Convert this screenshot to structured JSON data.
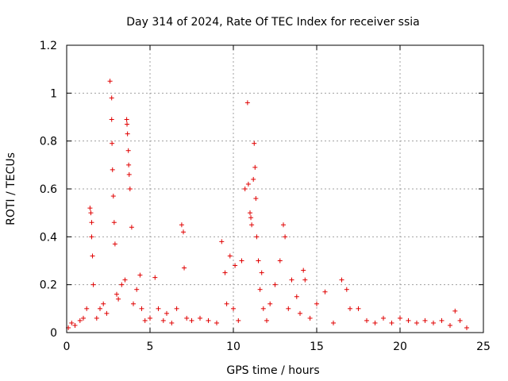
{
  "chart_data": {
    "type": "scatter",
    "title": "Day 314 of 2024, Rate Of TEC Index for receiver ssia",
    "xlabel": "GPS time / hours",
    "ylabel": "ROTI / TECUs",
    "xlim": [
      0,
      25
    ],
    "ylim": [
      0,
      1.2
    ],
    "x_ticks": [
      0,
      5,
      10,
      15,
      20,
      25
    ],
    "x_tick_labels": [
      "0",
      "5",
      "10",
      "15",
      "20",
      "25"
    ],
    "y_ticks": [
      0,
      0.2,
      0.4,
      0.6,
      0.8,
      1.0,
      1.2
    ],
    "y_tick_labels": [
      "0",
      "0.2",
      "0.4",
      "0.6",
      "0.8",
      "1",
      "1.2"
    ],
    "grid": true,
    "marker": "plus",
    "colors": {
      "points": "#e00000"
    },
    "series": [
      {
        "x": [
          0.1,
          0.3,
          0.5,
          0.8,
          1.0,
          1.2,
          1.4,
          1.45,
          1.5,
          1.5,
          1.55,
          1.6,
          1.8,
          2.0,
          2.2,
          2.4,
          2.6,
          2.7,
          2.7,
          2.72,
          2.75,
          2.8,
          2.85,
          2.9,
          3.0,
          3.1,
          3.3,
          3.5,
          3.6,
          3.62,
          3.65,
          3.7,
          3.72,
          3.75,
          3.8,
          3.9,
          4.0,
          4.2,
          4.4,
          4.5,
          4.7,
          5.0,
          5.3,
          5.5,
          5.8,
          6.0,
          6.3,
          6.6,
          6.9,
          7.0,
          7.05,
          7.2,
          7.5,
          8.0,
          8.5,
          9.0,
          9.3,
          9.5,
          9.6,
          9.8,
          10.0,
          10.1,
          10.3,
          10.5,
          10.7,
          10.85,
          10.9,
          11.0,
          11.05,
          11.1,
          11.2,
          11.25,
          11.3,
          11.35,
          11.4,
          11.5,
          11.6,
          11.7,
          11.8,
          12.0,
          12.2,
          12.5,
          12.8,
          13.0,
          13.1,
          13.3,
          13.5,
          13.8,
          14.0,
          14.2,
          14.3,
          14.6,
          15.0,
          15.5,
          16.0,
          16.5,
          16.8,
          17.0,
          17.5,
          18.0,
          18.5,
          19.0,
          19.5,
          20.0,
          20.5,
          21.0,
          21.5,
          22.0,
          22.5,
          23.0,
          23.3,
          23.6,
          24.0
        ],
        "y": [
          0.02,
          0.04,
          0.03,
          0.05,
          0.06,
          0.1,
          0.52,
          0.5,
          0.46,
          0.4,
          0.32,
          0.2,
          0.06,
          0.1,
          0.12,
          0.08,
          1.05,
          0.98,
          0.89,
          0.79,
          0.68,
          0.57,
          0.46,
          0.37,
          0.16,
          0.14,
          0.2,
          0.22,
          0.89,
          0.87,
          0.83,
          0.76,
          0.7,
          0.66,
          0.6,
          0.44,
          0.12,
          0.18,
          0.24,
          0.1,
          0.05,
          0.06,
          0.23,
          0.1,
          0.05,
          0.08,
          0.04,
          0.1,
          0.45,
          0.42,
          0.27,
          0.06,
          0.05,
          0.06,
          0.05,
          0.04,
          0.38,
          0.25,
          0.12,
          0.32,
          0.1,
          0.28,
          0.05,
          0.3,
          0.6,
          0.96,
          0.62,
          0.5,
          0.48,
          0.45,
          0.64,
          0.79,
          0.69,
          0.56,
          0.4,
          0.3,
          0.18,
          0.25,
          0.1,
          0.05,
          0.12,
          0.2,
          0.3,
          0.45,
          0.4,
          0.1,
          0.22,
          0.15,
          0.08,
          0.26,
          0.22,
          0.06,
          0.12,
          0.17,
          0.04,
          0.22,
          0.18,
          0.1,
          0.1,
          0.05,
          0.04,
          0.06,
          0.04,
          0.06,
          0.05,
          0.04,
          0.05,
          0.04,
          0.05,
          0.03,
          0.09,
          0.05,
          0.02
        ]
      }
    ]
  }
}
